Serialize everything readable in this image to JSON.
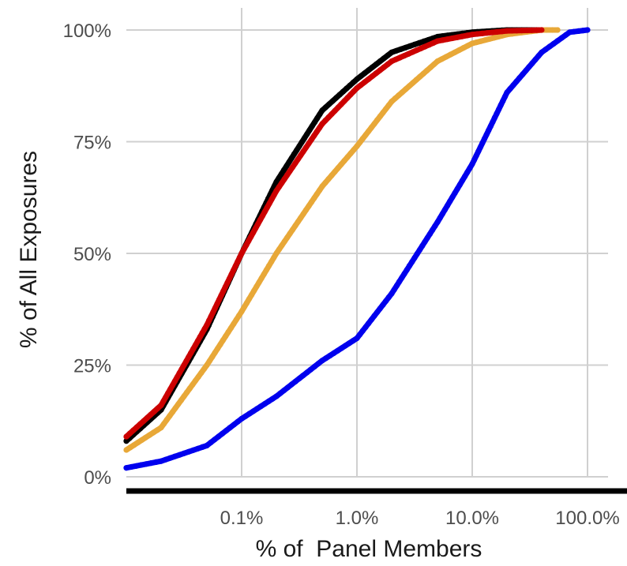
{
  "chart_data": {
    "type": "line",
    "title": "",
    "xlabel": "% of  Panel Members",
    "ylabel": "% of All Exposures",
    "x_scale": "log",
    "xlim": [
      0.01,
      100
    ],
    "ylim": [
      0,
      100
    ],
    "x_ticks": [
      {
        "value": 0.1,
        "label": "0.1%"
      },
      {
        "value": 1,
        "label": "1.0%"
      },
      {
        "value": 10,
        "label": "10.0%"
      },
      {
        "value": 100,
        "label": "100.0%"
      }
    ],
    "y_ticks": [
      {
        "value": 0,
        "label": "0%"
      },
      {
        "value": 25,
        "label": "25%"
      },
      {
        "value": 50,
        "label": "50%"
      },
      {
        "value": 75,
        "label": "75%"
      },
      {
        "value": 100,
        "label": "100%"
      }
    ],
    "grid": true,
    "legend": "none",
    "series": [
      {
        "color": "#000000",
        "points": [
          [
            0.01,
            8
          ],
          [
            0.02,
            15
          ],
          [
            0.05,
            33
          ],
          [
            0.1,
            50
          ],
          [
            0.2,
            66
          ],
          [
            0.5,
            82
          ],
          [
            1,
            89
          ],
          [
            2,
            95
          ],
          [
            5,
            98.5
          ],
          [
            10,
            99.5
          ],
          [
            20,
            100
          ],
          [
            40,
            100
          ]
        ]
      },
      {
        "color": "#e8a838",
        "points": [
          [
            0.01,
            6
          ],
          [
            0.02,
            11
          ],
          [
            0.05,
            25
          ],
          [
            0.1,
            37
          ],
          [
            0.2,
            50
          ],
          [
            0.5,
            65
          ],
          [
            1,
            74
          ],
          [
            2,
            84
          ],
          [
            5,
            93
          ],
          [
            10,
            97
          ],
          [
            20,
            99
          ],
          [
            40,
            100
          ],
          [
            55,
            100
          ]
        ]
      },
      {
        "color": "#cc0000",
        "points": [
          [
            0.01,
            9
          ],
          [
            0.02,
            16
          ],
          [
            0.05,
            34
          ],
          [
            0.1,
            50
          ],
          [
            0.2,
            64
          ],
          [
            0.5,
            79
          ],
          [
            1,
            87
          ],
          [
            2,
            93
          ],
          [
            5,
            97.5
          ],
          [
            10,
            99
          ],
          [
            20,
            99.8
          ],
          [
            40,
            100
          ]
        ]
      },
      {
        "color": "#0000ee",
        "points": [
          [
            0.01,
            2
          ],
          [
            0.02,
            3.5
          ],
          [
            0.05,
            7
          ],
          [
            0.1,
            13
          ],
          [
            0.2,
            18
          ],
          [
            0.5,
            26
          ],
          [
            1,
            31
          ],
          [
            2,
            41
          ],
          [
            5,
            57
          ],
          [
            10,
            70
          ],
          [
            20,
            86
          ],
          [
            40,
            95
          ],
          [
            70,
            99.5
          ],
          [
            100,
            100
          ]
        ]
      }
    ]
  }
}
